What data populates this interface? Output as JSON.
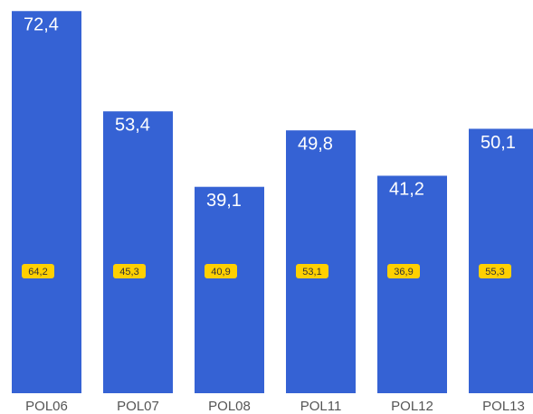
{
  "chart_data": {
    "type": "bar",
    "categories": [
      "POL06",
      "POL07",
      "POL08",
      "POL11",
      "POL12",
      "POL13"
    ],
    "series": [
      {
        "color": "#3562d4",
        "values": [
          72.4,
          53.4,
          39.1,
          49.8,
          41.2,
          50.1
        ],
        "value_labels": [
          "72,4",
          "53,4",
          "39,1",
          "49,8",
          "41,2",
          "50,1"
        ]
      },
      {
        "color": "#ffd000",
        "values": [
          64.2,
          45.3,
          40.9,
          53.1,
          36.9,
          55.3
        ],
        "value_labels": [
          "64,2",
          "45,3",
          "40,9",
          "53,1",
          "36,9",
          "55,3"
        ]
      }
    ],
    "ylim": [
      0,
      74.5
    ]
  }
}
